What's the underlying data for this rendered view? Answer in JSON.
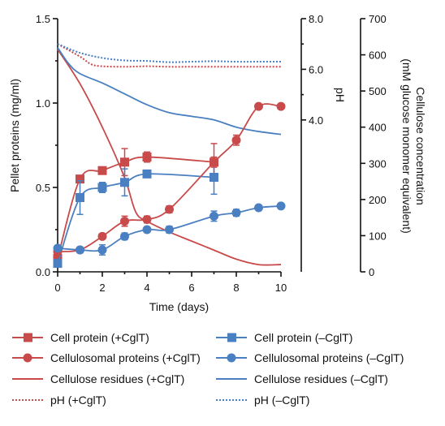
{
  "chart_data": {
    "type": "line",
    "xlabel": "Time (days)",
    "x_ticks": [
      "0",
      "2",
      "4",
      "6",
      "8",
      "10"
    ],
    "y_left": {
      "label": "Pellet proteins (mg/ml)",
      "ticks": [
        "0.0",
        "0.5",
        "1.0",
        "1.5"
      ],
      "lim": [
        0,
        1.5
      ]
    },
    "y_ph": {
      "label": "pH",
      "ticks": [
        "4.0",
        "6.0",
        "8.0"
      ],
      "lim": [
        -2,
        8
      ]
    },
    "y_cellulose": {
      "label": "Cellulose concentration",
      "label2": "(mM glucose monomer equivalent)",
      "ticks": [
        "0",
        "100",
        "200",
        "300",
        "400",
        "500",
        "600",
        "700"
      ],
      "lim": [
        0,
        700
      ]
    },
    "colors": {
      "red": "#c84a4a",
      "blue": "#4a7fc1"
    },
    "series": [
      {
        "name": "Cell protein  (+CglT)",
        "axis": "left",
        "color": "red",
        "marker": "square",
        "style": "solid",
        "points": [
          [
            0,
            0.08,
            0.02
          ],
          [
            1,
            0.55,
            0.02
          ],
          [
            2,
            0.6,
            0.02
          ],
          [
            3,
            0.65,
            0.08
          ],
          [
            4,
            0.68,
            0.03
          ],
          [
            7,
            0.65,
            0.11
          ]
        ]
      },
      {
        "name": "Cell protein (–CglT)",
        "axis": "left",
        "color": "blue",
        "marker": "square",
        "style": "solid",
        "points": [
          [
            0,
            0.05,
            0.02
          ],
          [
            1,
            0.44,
            0.1
          ],
          [
            2,
            0.5,
            0.03
          ],
          [
            3,
            0.53,
            0.08
          ],
          [
            4,
            0.58,
            0.02
          ],
          [
            7,
            0.56,
            0.1
          ]
        ]
      },
      {
        "name": "Cellulosomal proteins (+CglT)",
        "axis": "left",
        "color": "red",
        "marker": "circle",
        "style": "solid",
        "points": [
          [
            0,
            0.12,
            0.01
          ],
          [
            1,
            0.13,
            0.01
          ],
          [
            2,
            0.21,
            0.01
          ],
          [
            3,
            0.3,
            0.03
          ],
          [
            4,
            0.31,
            0.02
          ],
          [
            5,
            0.37,
            0.02
          ],
          [
            7,
            0.65,
            0.03
          ],
          [
            8,
            0.78,
            0.03
          ],
          [
            9,
            0.98,
            0.01
          ],
          [
            10,
            0.98,
            0.01
          ]
        ]
      },
      {
        "name": "Cellulosomal proteins (–CglT)",
        "axis": "left",
        "color": "blue",
        "marker": "circle",
        "style": "solid",
        "points": [
          [
            0,
            0.14,
            0.01
          ],
          [
            1,
            0.13,
            0.01
          ],
          [
            2,
            0.13,
            0.03
          ],
          [
            3,
            0.21,
            0.02
          ],
          [
            4,
            0.25,
            0.01
          ],
          [
            5,
            0.25,
            0.02
          ],
          [
            7,
            0.33,
            0.03
          ],
          [
            8,
            0.35,
            0.02
          ],
          [
            9,
            0.38,
            0.01
          ],
          [
            10,
            0.39,
            0.01
          ]
        ]
      },
      {
        "name": "Cellulose residues (+CglT)",
        "axis": "cellulose",
        "color": "red",
        "marker": "none",
        "style": "solid",
        "points": [
          [
            0,
            615
          ],
          [
            1,
            520
          ],
          [
            2,
            400
          ],
          [
            3,
            260
          ],
          [
            3.5,
            165
          ],
          [
            4,
            140
          ],
          [
            5,
            110
          ],
          [
            6,
            85
          ],
          [
            7,
            60
          ],
          [
            8,
            35
          ],
          [
            9,
            20
          ],
          [
            10,
            20
          ]
        ]
      },
      {
        "name": "Cellulose residues (–CglT)",
        "axis": "cellulose",
        "color": "blue",
        "marker": "none",
        "style": "solid",
        "points": [
          [
            0,
            620
          ],
          [
            0.5,
            575
          ],
          [
            1,
            548
          ],
          [
            2,
            522
          ],
          [
            3,
            492
          ],
          [
            4,
            462
          ],
          [
            5,
            440
          ],
          [
            6,
            430
          ],
          [
            7,
            420
          ],
          [
            8,
            400
          ],
          [
            9,
            388
          ],
          [
            10,
            380
          ]
        ]
      },
      {
        "name": "pH (+CglT)",
        "axis": "ph",
        "color": "red",
        "marker": "none",
        "style": "dotted",
        "points": [
          [
            0,
            7.0
          ],
          [
            1,
            6.5
          ],
          [
            1.5,
            6.2
          ],
          [
            2,
            6.12
          ],
          [
            3,
            6.1
          ],
          [
            4,
            6.12
          ],
          [
            5,
            6.1
          ],
          [
            6,
            6.1
          ],
          [
            7,
            6.1
          ],
          [
            8,
            6.1
          ],
          [
            9,
            6.1
          ],
          [
            10,
            6.1
          ]
        ]
      },
      {
        "name": "pH (–CglT)",
        "axis": "ph",
        "color": "blue",
        "marker": "none",
        "style": "dotted",
        "points": [
          [
            0,
            7.0
          ],
          [
            1,
            6.65
          ],
          [
            2,
            6.45
          ],
          [
            3,
            6.35
          ],
          [
            4,
            6.33
          ],
          [
            5,
            6.28
          ],
          [
            6,
            6.3
          ],
          [
            7,
            6.32
          ],
          [
            8,
            6.3
          ],
          [
            9,
            6.3
          ],
          [
            10,
            6.3
          ]
        ]
      }
    ]
  }
}
